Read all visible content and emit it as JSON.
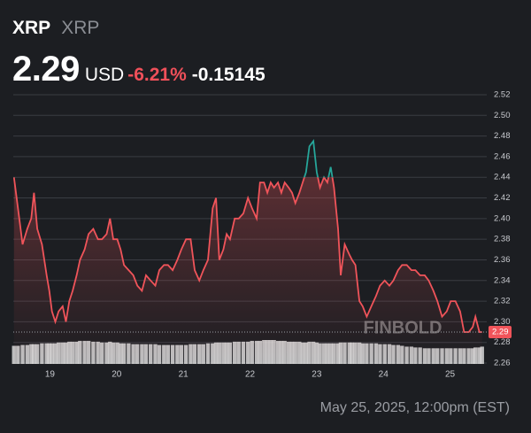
{
  "chart_data": {
    "type": "line",
    "title": "XRP",
    "subtitle": "XRP",
    "price": 2.29,
    "currency": "USD",
    "change_pct": {
      "value": -6.21,
      "label": "-6.21%"
    },
    "change": -0.15145,
    "watermark": "FINBOLD",
    "date": "May 25, 2025, 12:00pm (EST)",
    "colors": {
      "down": "#f0545a",
      "up": "#26a69a",
      "volume": "#d9d9d9"
    },
    "grid": true,
    "xlim": [
      18.45,
      25.55
    ],
    "xticks": [
      19,
      20,
      21,
      22,
      23,
      24,
      25
    ],
    "ylim": [
      2.26,
      2.52
    ],
    "yticks": [
      2.26,
      2.28,
      {
        "value": 2.3,
        "label": "2.30"
      },
      2.32,
      2.34,
      2.36,
      2.38,
      {
        "value": 2.4,
        "label": "2.40"
      },
      2.42,
      2.44,
      2.46,
      2.48,
      {
        "value": 2.5,
        "label": "2.50"
      },
      2.52
    ],
    "x": [
      18.46,
      18.52,
      18.59,
      18.66,
      18.72,
      18.76,
      18.81,
      18.88,
      18.95,
      18.99,
      19.03,
      19.08,
      19.13,
      19.19,
      19.24,
      19.29,
      19.34,
      19.4,
      19.45,
      19.52,
      19.58,
      19.65,
      19.72,
      19.78,
      19.85,
      19.9,
      19.95,
      20.01,
      20.06,
      20.11,
      20.18,
      20.25,
      20.31,
      20.38,
      20.44,
      20.51,
      20.58,
      20.64,
      20.71,
      20.77,
      20.84,
      20.91,
      20.97,
      21.04,
      21.11,
      21.17,
      21.24,
      21.3,
      21.37,
      21.44,
      21.49,
      21.54,
      21.6,
      21.65,
      21.7,
      21.77,
      21.83,
      21.9,
      21.97,
      22.03,
      22.1,
      22.15,
      22.21,
      22.26,
      22.31,
      22.36,
      22.42,
      22.47,
      22.52,
      22.58,
      22.63,
      22.68,
      22.74,
      22.79,
      22.84,
      22.89,
      22.95,
      23.0,
      23.05,
      23.11,
      23.16,
      23.21,
      23.26,
      23.32,
      23.36,
      23.42,
      23.49,
      23.53,
      23.58,
      23.64,
      23.69,
      23.75,
      23.82,
      23.89,
      23.95,
      24.02,
      24.09,
      24.15,
      24.22,
      24.28,
      24.35,
      24.42,
      24.48,
      24.55,
      24.62,
      24.68,
      24.75,
      24.81,
      24.88,
      24.95,
      25.01,
      25.08,
      25.15,
      25.21,
      25.28,
      25.34,
      25.38,
      25.44,
      25.48
    ],
    "series": [
      {
        "name": "XRP",
        "values": [
          2.44,
          2.41,
          2.375,
          2.39,
          2.4,
          2.425,
          2.39,
          2.375,
          2.345,
          2.33,
          2.31,
          2.3,
          2.31,
          2.315,
          2.3,
          2.32,
          2.33,
          2.345,
          2.36,
          2.37,
          2.385,
          2.39,
          2.38,
          2.38,
          2.385,
          2.4,
          2.38,
          2.38,
          2.37,
          2.355,
          2.35,
          2.345,
          2.335,
          2.33,
          2.345,
          2.34,
          2.335,
          2.35,
          2.355,
          2.355,
          2.35,
          2.36,
          2.37,
          2.38,
          2.38,
          2.35,
          2.34,
          2.35,
          2.36,
          2.41,
          2.42,
          2.36,
          2.37,
          2.385,
          2.38,
          2.4,
          2.4,
          2.405,
          2.42,
          2.41,
          2.4,
          2.435,
          2.435,
          2.425,
          2.435,
          2.43,
          2.435,
          2.425,
          2.435,
          2.43,
          2.425,
          2.415,
          2.425,
          2.435,
          2.445,
          2.47,
          2.475,
          2.445,
          2.43,
          2.44,
          2.435,
          2.45,
          2.43,
          2.39,
          2.345,
          2.375,
          2.365,
          2.36,
          2.355,
          2.32,
          2.315,
          2.305,
          2.315,
          2.325,
          2.335,
          2.34,
          2.335,
          2.34,
          2.35,
          2.355,
          2.355,
          2.35,
          2.35,
          2.345,
          2.345,
          2.34,
          2.33,
          2.32,
          2.305,
          2.31,
          2.32,
          2.32,
          2.31,
          2.29,
          2.29,
          2.295,
          2.305,
          2.29,
          2.29
        ]
      },
      {
        "name": "Volume",
        "values": [
          22,
          22,
          23,
          23,
          24,
          24,
          24,
          25,
          25,
          25,
          25,
          25,
          26,
          26,
          26,
          27,
          27,
          27,
          28,
          28,
          28,
          27,
          27,
          26,
          26,
          27,
          26,
          26,
          25,
          25,
          25,
          24,
          24,
          24,
          24,
          24,
          24,
          23,
          23,
          23,
          23,
          23,
          23,
          23,
          24,
          24,
          24,
          24,
          25,
          25,
          26,
          26,
          26,
          26,
          26,
          27,
          27,
          27,
          27,
          28,
          28,
          28,
          29,
          29,
          29,
          29,
          28,
          28,
          28,
          27,
          27,
          27,
          27,
          26,
          26,
          27,
          27,
          26,
          25,
          25,
          25,
          25,
          25,
          25,
          26,
          26,
          26,
          26,
          26,
          26,
          25,
          25,
          25,
          25,
          24,
          24,
          24,
          23,
          23,
          22,
          21,
          21,
          20,
          20,
          19,
          19,
          19,
          19,
          19,
          19,
          19,
          19,
          19,
          19,
          19,
          19,
          20,
          20,
          21
        ]
      }
    ]
  }
}
